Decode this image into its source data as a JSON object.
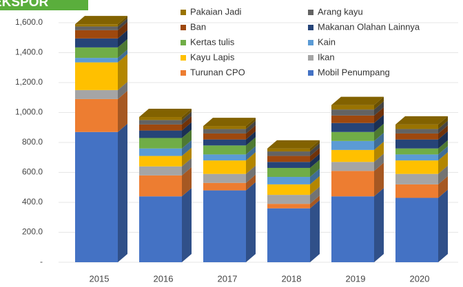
{
  "chart_data": {
    "type": "bar3d-stacked",
    "title": "EKSPOR",
    "categories": [
      "2015",
      "2016",
      "2017",
      "2018",
      "2019",
      "2020"
    ],
    "series": [
      {
        "name": "Mobil Penumpang",
        "color": "#4472c4",
        "values": [
          870,
          440,
          480,
          360,
          440,
          430
        ]
      },
      {
        "name": "Turunan CPO",
        "color": "#ed7d31",
        "values": [
          220,
          140,
          50,
          30,
          170,
          90
        ]
      },
      {
        "name": "Ikan",
        "color": "#a5a5a5",
        "values": [
          60,
          60,
          60,
          60,
          60,
          70
        ]
      },
      {
        "name": "Kayu Lapis",
        "color": "#ffc000",
        "values": [
          185,
          70,
          90,
          70,
          80,
          90
        ]
      },
      {
        "name": "Kain",
        "color": "#5b9bd5",
        "values": [
          30,
          50,
          40,
          50,
          60,
          40
        ]
      },
      {
        "name": "Kertas tulis",
        "color": "#70ad47",
        "values": [
          70,
          70,
          60,
          60,
          60,
          40
        ]
      },
      {
        "name": "Makanan Olahan Lainnya",
        "color": "#264478",
        "values": [
          60,
          50,
          40,
          40,
          60,
          60
        ]
      },
      {
        "name": "Ban",
        "color": "#9e480e",
        "values": [
          55,
          40,
          40,
          40,
          50,
          40
        ]
      },
      {
        "name": "Arang kayu",
        "color": "#636363",
        "values": [
          25,
          30,
          30,
          30,
          40,
          30
        ]
      },
      {
        "name": "Pakaian Jadi",
        "color": "#997300",
        "values": [
          15,
          20,
          20,
          20,
          30,
          30
        ]
      }
    ],
    "ylim": [
      0,
      1600
    ],
    "yticks": [
      {
        "value": 0,
        "label": "-"
      },
      {
        "value": 200,
        "label": "200.0"
      },
      {
        "value": 400,
        "label": "400.0"
      },
      {
        "value": 600,
        "label": "600.0"
      },
      {
        "value": 800,
        "label": "800.0"
      },
      {
        "value": 1000,
        "label": "1,000.0"
      },
      {
        "value": 1200,
        "label": "1,200.0"
      },
      {
        "value": 1400,
        "label": "1,400.0"
      },
      {
        "value": 1600,
        "label": "1,600.0"
      }
    ],
    "grid": true
  }
}
